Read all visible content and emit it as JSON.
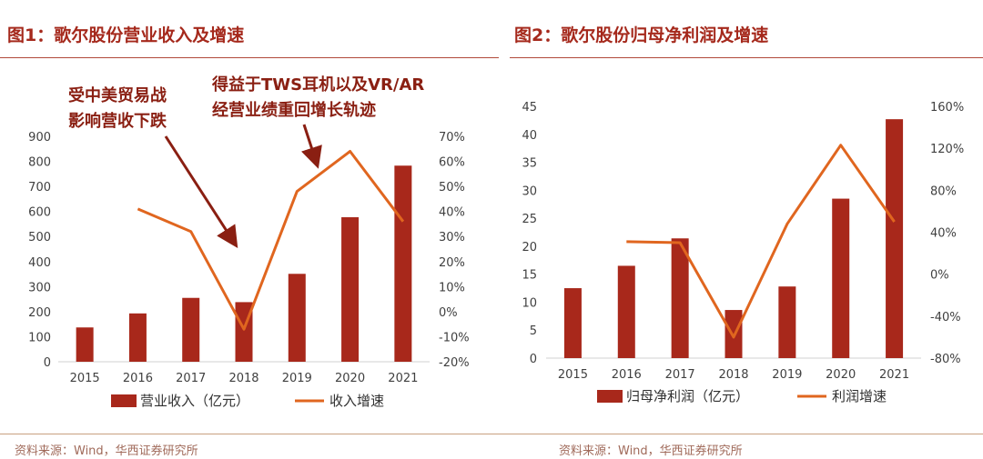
{
  "header": {
    "left_title": "图1：歌尔股份营业收入及增速",
    "right_title": "图2：歌尔股份归母净利润及增速"
  },
  "footer": {
    "left_source": "资料来源：Wind，华西证券研究所",
    "right_source": "资料来源：Wind，华西证券研究所"
  },
  "annotations": {
    "left_1": "受中美贸易战",
    "left_2": "影响营收下跌",
    "right_1": "得益于TWS耳机以及VR/AR",
    "right_2": "经营业绩重回增长轨迹"
  },
  "colors": {
    "bar": "#a8281b",
    "line": "#e0661f",
    "title": "#a5291c"
  },
  "chart_data": [
    {
      "type": "bar+line",
      "title": "图1：歌尔股份营业收入及增速",
      "categories": [
        "2015",
        "2016",
        "2017",
        "2018",
        "2019",
        "2020",
        "2021"
      ],
      "series": [
        {
          "name": "营业收入（亿元）",
          "type": "bar",
          "axis": "left",
          "values": [
            137,
            193,
            255,
            238,
            351,
            577,
            783
          ]
        },
        {
          "name": "收入增速",
          "type": "line",
          "axis": "right",
          "values": [
            null,
            41,
            32,
            -7,
            48,
            64,
            36
          ]
        }
      ],
      "left_axis": {
        "min": 0,
        "max": 900,
        "step": 100,
        "ticks": [
          "0",
          "100",
          "200",
          "300",
          "400",
          "500",
          "600",
          "700",
          "800",
          "900"
        ]
      },
      "right_axis": {
        "min": -20,
        "max": 70,
        "step": 10,
        "ticks": [
          "-20%",
          "-10%",
          "0%",
          "10%",
          "20%",
          "30%",
          "40%",
          "50%",
          "60%",
          "70%"
        ]
      },
      "legend": "bottom"
    },
    {
      "type": "bar+line",
      "title": "图2：歌尔股份归母净利润及增速",
      "categories": [
        "2015",
        "2016",
        "2017",
        "2018",
        "2019",
        "2020",
        "2021"
      ],
      "series": [
        {
          "name": "归母净利润（亿元）",
          "type": "bar",
          "axis": "left",
          "values": [
            12.5,
            16.5,
            21.4,
            8.6,
            12.8,
            28.5,
            42.7
          ]
        },
        {
          "name": "利润增速",
          "type": "line",
          "axis": "right",
          "values": [
            null,
            31,
            30,
            -60,
            48,
            123,
            50
          ]
        }
      ],
      "left_axis": {
        "min": 0,
        "max": 45,
        "step": 5,
        "ticks": [
          "0",
          "5",
          "10",
          "15",
          "20",
          "25",
          "30",
          "35",
          "40",
          "45"
        ]
      },
      "right_axis": {
        "min": -80,
        "max": 160,
        "step": 40,
        "ticks": [
          "-80%",
          "-40%",
          "0%",
          "40%",
          "80%",
          "120%",
          "160%"
        ]
      },
      "legend": "bottom"
    }
  ]
}
